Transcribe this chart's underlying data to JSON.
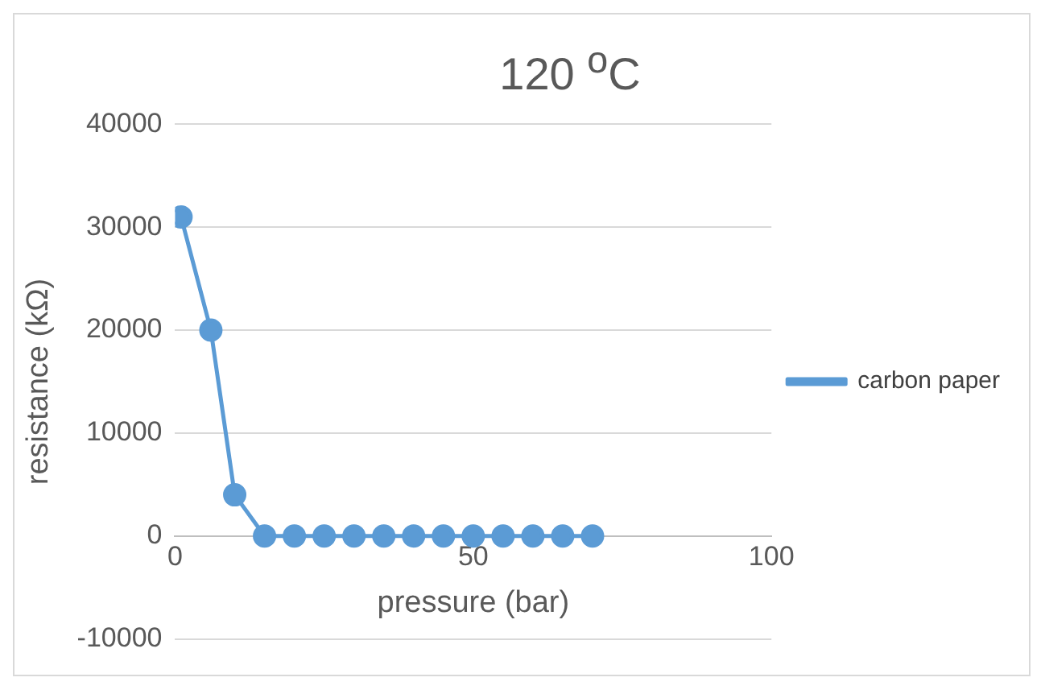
{
  "chart_data": {
    "type": "line",
    "title": "120 $^{o}$C",
    "xlabel": "pressure (bar)",
    "ylabel": "resistance (kΩ)",
    "x": [
      1,
      6,
      10,
      15,
      20,
      25,
      30,
      35,
      40,
      45,
      50,
      55,
      60,
      65,
      70
    ],
    "series": [
      {
        "name": "carbon paper",
        "color": "#5b9bd5",
        "values": [
          31000,
          20000,
          4000,
          0,
          0,
          0,
          0,
          0,
          0,
          0,
          0,
          0,
          0,
          0,
          0
        ]
      }
    ],
    "xlim": [
      0,
      100
    ],
    "xticks": [
      0,
      50,
      100
    ],
    "ylim": [
      -10000,
      40000
    ],
    "yticks": [
      -10000,
      0,
      10000,
      20000,
      30000,
      40000
    ],
    "grid": "y",
    "legend": "right",
    "marker": "circle",
    "line_style": "solid"
  }
}
